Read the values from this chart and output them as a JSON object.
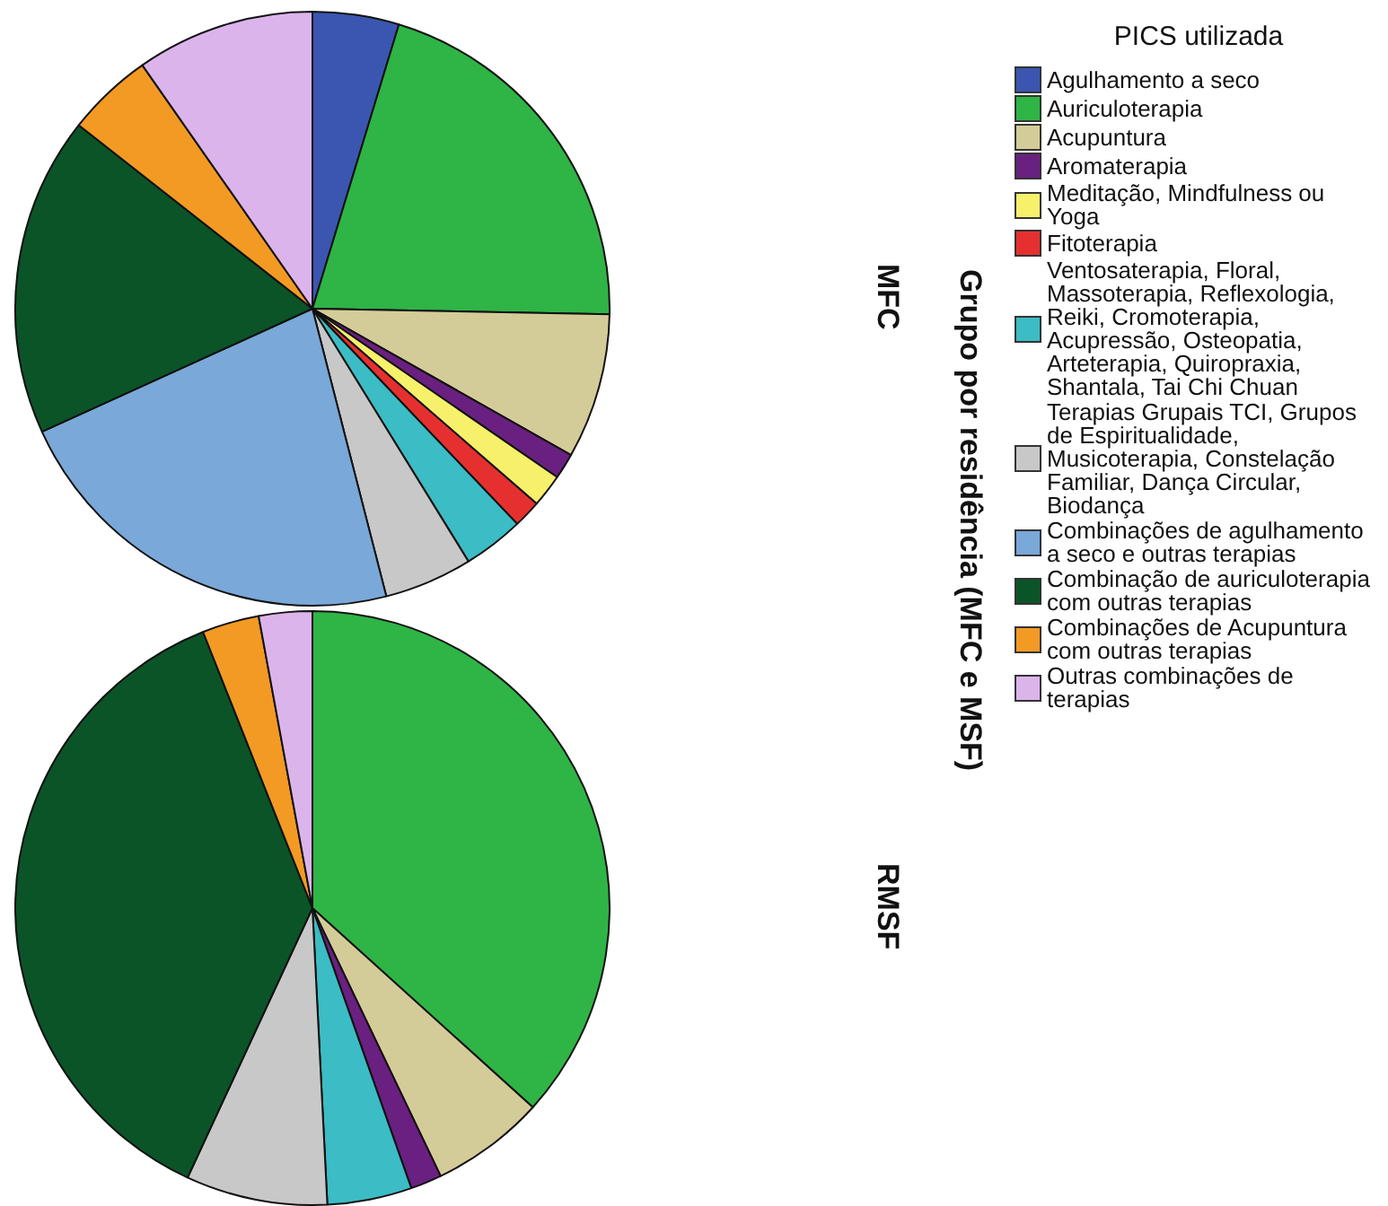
{
  "chart_data": {
    "type": "pie",
    "legend_title": "PICS utilizada",
    "ylabel": "Grupo por residência (MFC e MSF)",
    "legend": "right",
    "categories": [
      "Agulhamento a seco",
      "Auriculoterapia",
      "Acupuntura",
      "Aromaterapia",
      "Meditação, Mindfulness ou Yoga",
      "Fitoterapia",
      "Ventosaterapia, Floral, Massoterapia, Reflexologia, Reiki, Cromoterapia, Acupressão, Osteopatia, Arteterapia, Quiropraxia, Shantala, Tai Chi Chuan",
      "Terapias Grupais TCI, Grupos de Espiritualidade, Musicoterapia, Constelação Familiar, Dança Circular, Biodança",
      "Combinações de agulhamento a seco e outras terapias",
      "Combinação de auriculoterapia com outras terapias",
      "Combinações de Acupuntura com outras terapias",
      "Outras combinações de terapias"
    ],
    "colors": [
      "#3a56b0",
      "#2fb446",
      "#d4cc98",
      "#6a2080",
      "#f7f06a",
      "#e63030",
      "#3cbcc4",
      "#c8c8c8",
      "#7aa8d8",
      "#0b5428",
      "#f39a24",
      "#dcb4ec"
    ],
    "series": [
      {
        "name": "MFC",
        "values": [
          4.7,
          20.6,
          7.9,
          1.4,
          1.8,
          1.5,
          3.3,
          4.8,
          22.2,
          17.4,
          4.7,
          9.7
        ]
      },
      {
        "name": "RMSF",
        "values": [
          0,
          36.7,
          6.2,
          1.7,
          0,
          0,
          4.6,
          7.7,
          0,
          37.1,
          3.1,
          2.9
        ]
      }
    ]
  }
}
